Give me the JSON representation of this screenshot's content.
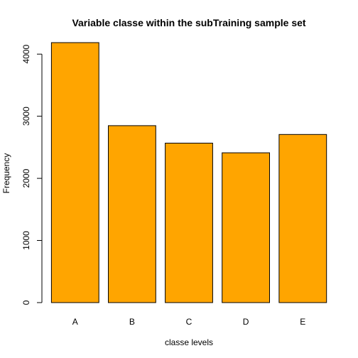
{
  "chart_data": {
    "type": "bar",
    "title": "Variable classe within the subTraining sample set",
    "xlabel": "classe levels",
    "ylabel": "Frequency",
    "categories": [
      "A",
      "B",
      "C",
      "D",
      "E"
    ],
    "values": [
      4185,
      2848,
      2567,
      2412,
      2706
    ],
    "ylim": [
      0,
      4185
    ],
    "yticks": [
      0,
      1000,
      2000,
      3000,
      4000
    ],
    "bar_color": "#FFA500",
    "bar_border_color": "#000000",
    "grid": false
  }
}
